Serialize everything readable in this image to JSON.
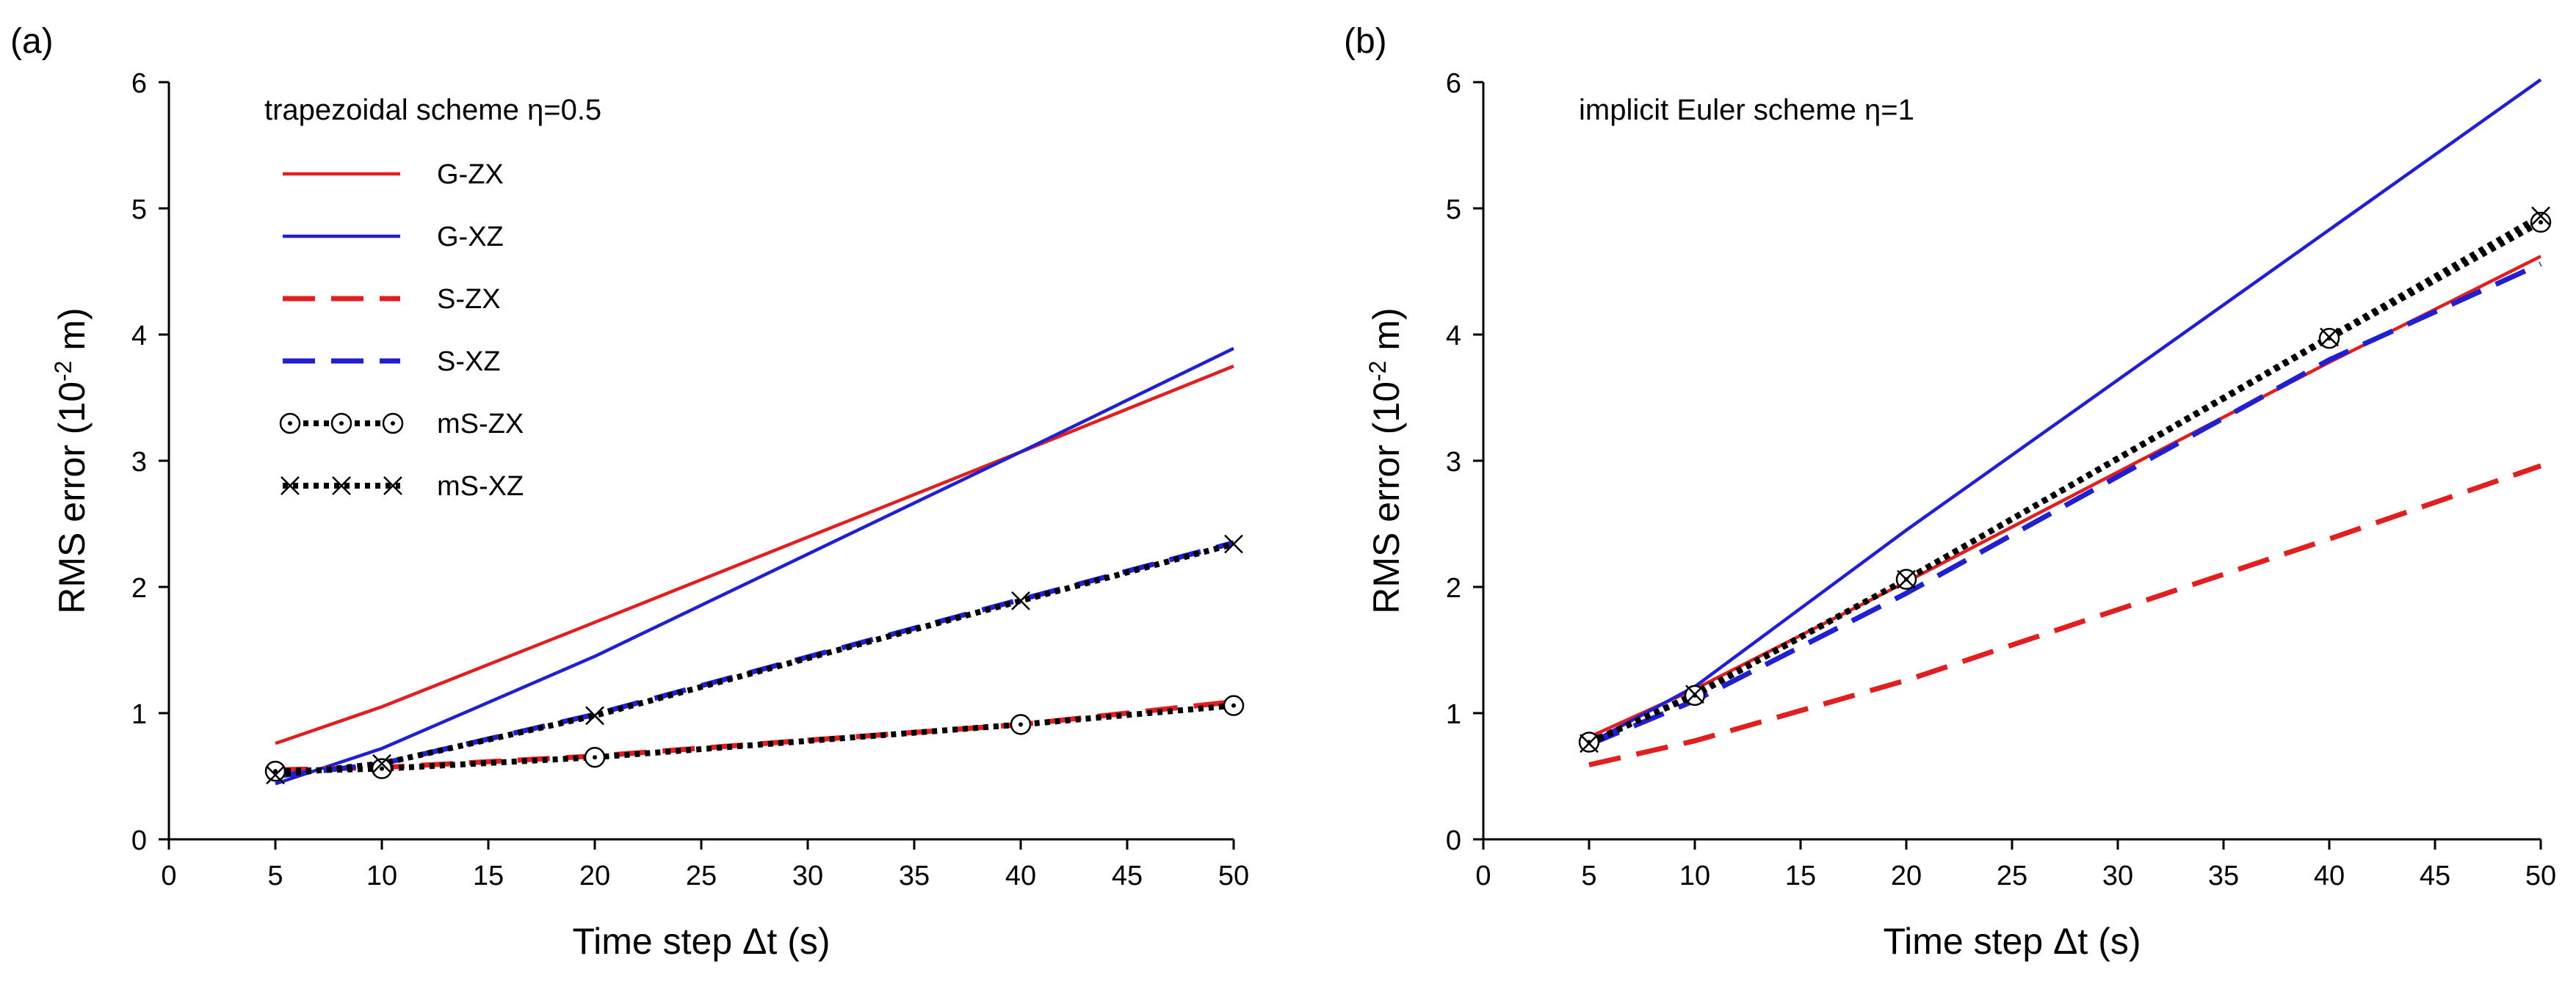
{
  "chart_data": [
    {
      "type": "line",
      "panel_label": "(a)",
      "scheme_label": "trapezoidal scheme η=0.5",
      "xlabel": "Time step Δt (s)",
      "ylabel_main": "RMS error (10",
      "ylabel_exp": "-2",
      "ylabel_tail": " m)",
      "xlim": [
        0,
        50
      ],
      "ylim": [
        0,
        6
      ],
      "xticks": [
        0,
        5,
        10,
        15,
        20,
        25,
        30,
        35,
        40,
        45,
        50
      ],
      "yticks": [
        0,
        1,
        2,
        3,
        4,
        5,
        6
      ],
      "legend_position": "top-left",
      "series": [
        {
          "name": "G-ZX",
          "color": "#e02020",
          "style": "solid",
          "marker": "none",
          "x": [
            5,
            10,
            20,
            40,
            50
          ],
          "y": [
            0.76,
            1.05,
            1.72,
            3.07,
            3.75
          ]
        },
        {
          "name": "G-XZ",
          "color": "#2020d0",
          "style": "solid",
          "marker": "none",
          "x": [
            5,
            10,
            20,
            40,
            50
          ],
          "y": [
            0.44,
            0.72,
            1.45,
            3.07,
            3.89
          ]
        },
        {
          "name": "S-ZX",
          "color": "#e02020",
          "style": "dashed",
          "marker": "none",
          "x": [
            5,
            10,
            20,
            40,
            50
          ],
          "y": [
            0.55,
            0.57,
            0.66,
            0.91,
            1.09
          ]
        },
        {
          "name": "S-XZ",
          "color": "#2020d0",
          "style": "dashed",
          "marker": "none",
          "x": [
            5,
            10,
            20,
            40,
            50
          ],
          "y": [
            0.5,
            0.6,
            0.99,
            1.9,
            2.35
          ]
        },
        {
          "name": "mS-ZX",
          "color": "#000000",
          "style": "dotted",
          "marker": "circle",
          "x": [
            5,
            10,
            20,
            40,
            50
          ],
          "y": [
            0.54,
            0.56,
            0.65,
            0.91,
            1.06
          ]
        },
        {
          "name": "mS-XZ",
          "color": "#000000",
          "style": "dotted",
          "marker": "x",
          "x": [
            5,
            10,
            20,
            40,
            50
          ],
          "y": [
            0.51,
            0.6,
            0.98,
            1.89,
            2.34
          ]
        }
      ]
    },
    {
      "type": "line",
      "panel_label": "(b)",
      "scheme_label": "implicit Euler scheme η=1",
      "xlabel": "Time step Δt (s)",
      "ylabel_main": "RMS error (10",
      "ylabel_exp": "-2",
      "ylabel_tail": " m)",
      "xlim": [
        0,
        50
      ],
      "ylim": [
        0,
        6
      ],
      "xticks": [
        0,
        5,
        10,
        15,
        20,
        25,
        30,
        35,
        40,
        45,
        50
      ],
      "yticks": [
        0,
        1,
        2,
        3,
        4,
        5,
        6
      ],
      "series": [
        {
          "name": "G-ZX",
          "color": "#e02020",
          "style": "solid",
          "marker": "none",
          "x": [
            5,
            10,
            20,
            40,
            50
          ],
          "y": [
            0.81,
            1.19,
            2.04,
            3.78,
            4.62
          ]
        },
        {
          "name": "G-XZ",
          "color": "#2020d0",
          "style": "solid",
          "marker": "none",
          "x": [
            5,
            10,
            20,
            40,
            50
          ],
          "y": [
            0.76,
            1.21,
            2.45,
            4.83,
            6.02
          ]
        },
        {
          "name": "S-ZX",
          "color": "#e02020",
          "style": "dashed",
          "marker": "none",
          "x": [
            5,
            10,
            20,
            40,
            50
          ],
          "y": [
            0.59,
            0.78,
            1.26,
            2.38,
            2.96
          ]
        },
        {
          "name": "S-XZ",
          "color": "#2020d0",
          "style": "dashed",
          "marker": "none",
          "x": [
            5,
            10,
            20,
            40,
            50
          ],
          "y": [
            0.75,
            1.1,
            1.95,
            3.8,
            4.56
          ]
        },
        {
          "name": "mS-ZX",
          "color": "#000000",
          "style": "dotted",
          "marker": "circle",
          "x": [
            5,
            10,
            20,
            40,
            50
          ],
          "y": [
            0.77,
            1.14,
            2.06,
            3.97,
            4.89
          ]
        },
        {
          "name": "mS-XZ",
          "color": "#000000",
          "style": "dotted",
          "marker": "x",
          "x": [
            5,
            10,
            20,
            40,
            50
          ],
          "y": [
            0.76,
            1.15,
            2.06,
            3.98,
            4.94
          ]
        }
      ]
    }
  ]
}
